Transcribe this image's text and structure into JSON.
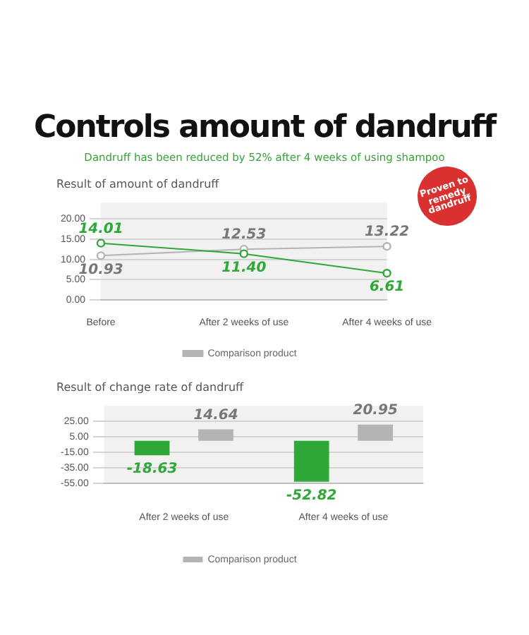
{
  "chart_data": [
    {
      "type": "other",
      "title": "Controls amount of dandruff",
      "subtitle": "Dandruff has been reduced by 52% after 4 weeks of using shampoo",
      "annotations": [
        "Proven to remedy dandruff"
      ]
    },
    {
      "type": "line",
      "title": "Result of amount of dandruff",
      "categories": [
        "Before",
        "After 2 weeks of use",
        "After 4 weeks of use"
      ],
      "series": [
        {
          "color": "#2ea836",
          "values": [
            14.01,
            11.4,
            6.61
          ],
          "value_labels": [
            "14.01",
            "11.40",
            "6.61"
          ]
        },
        {
          "name": "Comparison product",
          "color": "#b4b4b4",
          "values": [
            10.93,
            12.53,
            13.22
          ],
          "value_labels": [
            "10.93",
            "12.53",
            "13.22"
          ]
        }
      ],
      "ylim": [
        0,
        24
      ],
      "yticks": [
        {
          "value": 0,
          "label": "0.00"
        },
        {
          "value": 5,
          "label": "5.00"
        },
        {
          "value": 10,
          "label": "10.00"
        },
        {
          "value": 15,
          "label": "15.00"
        },
        {
          "value": 20,
          "label": "20.00"
        }
      ],
      "grid": "y",
      "legend": "bottom",
      "marker": "circle"
    },
    {
      "type": "bar",
      "title": "Result of change rate of dandruff",
      "categories": [
        "After 2 weeks of use",
        "After 4 weeks of use"
      ],
      "series": [
        {
          "color": "#2ea836",
          "values": [
            -18.63,
            -52.82
          ]
        },
        {
          "name": "Comparison product",
          "color": "#b4b4b4",
          "values": [
            14.64,
            20.95
          ]
        }
      ],
      "ylim": [
        -55,
        45
      ],
      "yticks": [
        {
          "value": -55,
          "label": "-55.00"
        },
        {
          "value": -35,
          "label": "-35.00"
        },
        {
          "value": -15,
          "label": "-15.00"
        },
        {
          "value": 5,
          "label": "5.00"
        },
        {
          "value": 25,
          "label": "25.00"
        }
      ],
      "grid": "y",
      "legend": "bottom",
      "data_labels": true
    }
  ]
}
